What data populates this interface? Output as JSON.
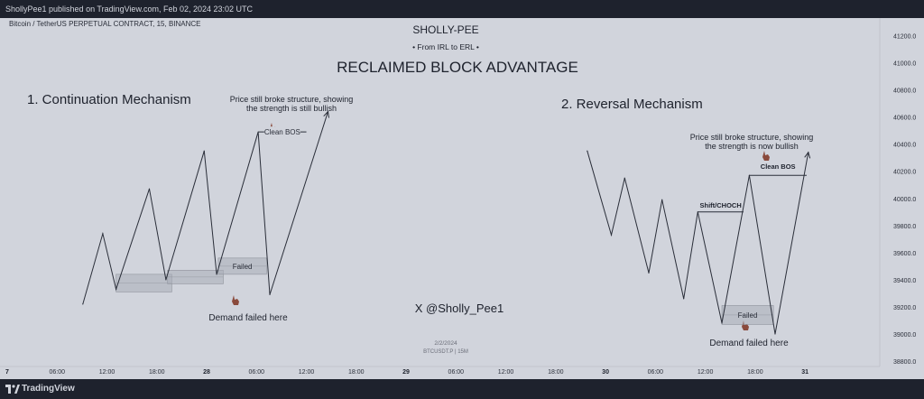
{
  "header": {
    "published": "ShollyPee1 published on TradingView.com, Feb 02, 2024 23:02 UTC"
  },
  "symbol": "Bitcoin / TetherUS PERPETUAL CONTRACT, 15, BINANCE",
  "brand": {
    "name": "SHOLLY-PEE",
    "tagline": "• From IRL to ERL •"
  },
  "main_title": "RECLAIMED BLOCK ADVANTAGE",
  "handle": "X @Sholly_Pee1",
  "watermark": {
    "date": "2/2/2024",
    "ticker": "BTCUSDT.P | 15M"
  },
  "footer": {
    "brand": "TradingView"
  },
  "colors": {
    "chart_bg": "#d1d4dc",
    "frame": "#1e222d",
    "line": "#2a2e39",
    "zone": "#a9adb8",
    "pin": "#8a4a3c"
  },
  "icons": [
    "pointing-hand-icon",
    "tradingview-logo-icon"
  ],
  "chart_data": {
    "type": "line",
    "title": "RECLAIMED BLOCK ADVANTAGE",
    "xlabel": "",
    "ylabel": "",
    "yticks": [
      41200,
      41000,
      40800,
      40600,
      40400,
      40200,
      40000,
      39800,
      39600,
      39400,
      39200,
      39000,
      38800
    ],
    "ylim": [
      38760,
      41330
    ],
    "xticks": [
      {
        "label": "7",
        "x": 0
      },
      {
        "label": "06:00",
        "x": 6
      },
      {
        "label": "12:00",
        "x": 12
      },
      {
        "label": "18:00",
        "x": 18
      },
      {
        "label": "28",
        "x": 24
      },
      {
        "label": "06:00",
        "x": 30
      },
      {
        "label": "12:00",
        "x": 36
      },
      {
        "label": "18:00",
        "x": 42
      },
      {
        "label": "29",
        "x": 48
      },
      {
        "label": "06:00",
        "x": 54
      },
      {
        "label": "12:00",
        "x": 60
      },
      {
        "label": "18:00",
        "x": 66
      },
      {
        "label": "30",
        "x": 72
      },
      {
        "label": "06:00",
        "x": 78
      },
      {
        "label": "12:00",
        "x": 84
      },
      {
        "label": "18:00",
        "x": 90
      },
      {
        "label": "31",
        "x": 96
      }
    ],
    "xlim": [
      0,
      105
    ],
    "grid": false,
    "panels": [
      {
        "name": "1. Continuation Mechanism",
        "note": "Price still broke structure, showing the strength is still bullish",
        "bos_label": "Clean BOS",
        "zone_label": "Failed",
        "demand_label": "Demand failed here",
        "path": [
          [
            9.1,
            39220
          ],
          [
            11.5,
            39740
          ],
          [
            13.1,
            39330
          ],
          [
            17.1,
            40070
          ],
          [
            19.1,
            39400
          ],
          [
            23.7,
            40350
          ],
          [
            25.2,
            39440
          ],
          [
            30.2,
            40490
          ],
          [
            31.6,
            39290
          ],
          [
            38.6,
            40640
          ]
        ],
        "bos": [
          [
            30.2,
            40490
          ],
          [
            36,
            40490
          ]
        ],
        "zones": [
          [
            13.1,
            19.8,
            39440,
            39310
          ],
          [
            19.3,
            26,
            39470,
            39370
          ],
          [
            25.4,
            31.2,
            39560,
            39440
          ]
        ]
      },
      {
        "name": "2. Reversal Mechanism",
        "note": "Price still broke structure, showing the strength is now bullish",
        "bos_label": "Clean BOS",
        "choch_label": "Shift/CHOCH",
        "zone_label": "Failed",
        "demand_label": "Demand failed here",
        "path": [
          [
            69.8,
            40350
          ],
          [
            72.7,
            39730
          ],
          [
            74.3,
            40150
          ],
          [
            77.2,
            39450
          ],
          [
            78.8,
            39990
          ],
          [
            81.4,
            39260
          ],
          [
            83.1,
            39900
          ],
          [
            86,
            39080
          ],
          [
            89.3,
            40170
          ],
          [
            92.4,
            39000
          ],
          [
            96.4,
            40340
          ]
        ],
        "bos": [
          [
            89.3,
            40170
          ],
          [
            96.2,
            40170
          ]
        ],
        "choch": [
          [
            83.1,
            39900
          ],
          [
            88.6,
            39900
          ]
        ],
        "zones": [
          [
            86,
            92.2,
            39210,
            39070
          ]
        ]
      }
    ]
  }
}
